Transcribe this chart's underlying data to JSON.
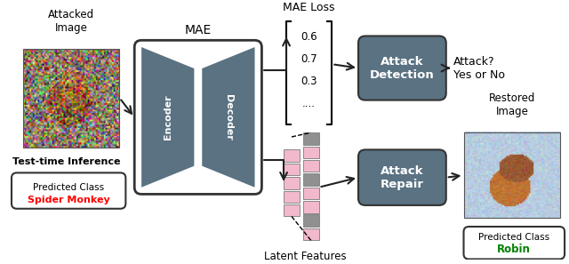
{
  "bg_color": "#ffffff",
  "dark_blue": "#5a7282",
  "pink": "#f2b8cc",
  "gray_bar": "#909090",
  "arrow_color": "#222222",
  "mae_loss_label": "MAE Loss",
  "latent_features_label": "Latent Features",
  "attacked_image_label": "Attacked\nImage",
  "test_time_label": "Test-time Inference",
  "restored_image_label": "Restored\nImage",
  "attack_question_line1": "Attack?",
  "attack_question_line2": "Yes or No",
  "predicted_class_left_label": "Predicted Class",
  "predicted_class_left_value": "Spider Monkey",
  "predicted_class_right_label": "Predicted Class",
  "predicted_class_right_value": "Robin",
  "attack_detection_label": "Attack\nDetection",
  "attack_repair_label": "Attack\nRepair",
  "mae_label": "MAE",
  "encoder_label": "Encoder",
  "decoder_label": "Decoder",
  "mae_vals": [
    "0.6",
    "0.7",
    "0.3",
    "...."
  ]
}
